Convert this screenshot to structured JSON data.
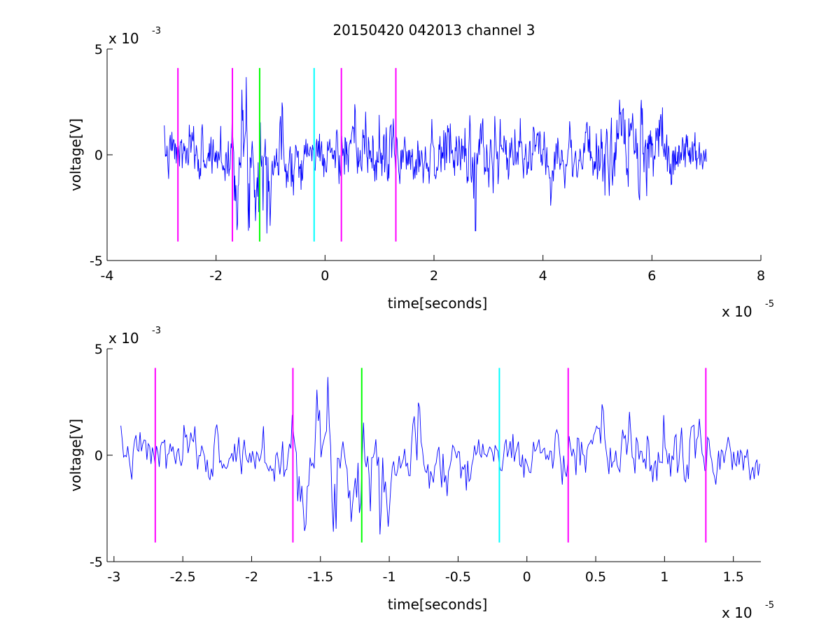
{
  "title": "20150420 042013 channel 3",
  "colors": {
    "signal": "#0000ff",
    "magenta": "#ff00ff",
    "green": "#00ff00",
    "cyan": "#00ffff",
    "axes": "#000000",
    "background": "#ffffff"
  },
  "chart_data": [
    {
      "type": "line",
      "name": "full-view",
      "xlabel": "time[seconds]",
      "ylabel": "voltage[V]",
      "x_multiplier": {
        "base": "x 10",
        "exp": "-5"
      },
      "y_multiplier": {
        "base": "x 10",
        "exp": "-3"
      },
      "xlim": [
        -4,
        8
      ],
      "ylim": [
        -5,
        5
      ],
      "xticks": [
        -4,
        -2,
        0,
        2,
        4,
        6,
        8
      ],
      "xtick_labels": [
        "-4",
        "-2",
        "0",
        "2",
        "4",
        "6",
        "8"
      ],
      "yticks": [
        -5,
        0,
        5
      ],
      "ytick_labels": [
        "-5",
        "0",
        "5"
      ],
      "signal": {
        "x_start": -2.95,
        "x_end": 7.0,
        "points": 1000,
        "seed": 7
      },
      "markers": [
        {
          "x": -2.7,
          "color": "magenta",
          "y_range": [
            -4.1,
            4.1
          ]
        },
        {
          "x": -1.7,
          "color": "magenta",
          "y_range": [
            -4.1,
            4.1
          ]
        },
        {
          "x": -1.2,
          "color": "green",
          "y_range": [
            -4.1,
            4.1
          ]
        },
        {
          "x": -0.2,
          "color": "cyan",
          "y_range": [
            -4.1,
            4.1
          ]
        },
        {
          "x": 0.3,
          "color": "magenta",
          "y_range": [
            -4.1,
            4.1
          ]
        },
        {
          "x": 1.3,
          "color": "magenta",
          "y_range": [
            -4.1,
            4.1
          ]
        }
      ]
    },
    {
      "type": "line",
      "name": "zoomed-view",
      "xlabel": "time[seconds]",
      "ylabel": "voltage[V]",
      "x_multiplier": {
        "base": "x 10",
        "exp": "-5"
      },
      "y_multiplier": {
        "base": "x 10",
        "exp": "-3"
      },
      "xlim": [
        -3.05,
        1.7
      ],
      "ylim": [
        -5,
        5
      ],
      "xticks": [
        -3,
        -2.5,
        -2,
        -1.5,
        -1,
        -0.5,
        0,
        0.5,
        1,
        1.5
      ],
      "xtick_labels": [
        "-3",
        "-2.5",
        "-2",
        "-1.5",
        "-1",
        "-0.5",
        "0",
        "0.5",
        "1",
        "1.5"
      ],
      "yticks": [
        -5,
        0,
        5
      ],
      "ytick_labels": [
        "-5",
        "0",
        "5"
      ],
      "signal": {
        "x_start": -2.95,
        "x_end": 1.7,
        "points": 470,
        "seed": 7
      },
      "markers": [
        {
          "x": -2.7,
          "color": "magenta",
          "y_range": [
            -4.1,
            4.1
          ]
        },
        {
          "x": -1.7,
          "color": "magenta",
          "y_range": [
            -4.1,
            4.1
          ]
        },
        {
          "x": -1.2,
          "color": "green",
          "y_range": [
            -4.1,
            4.1
          ]
        },
        {
          "x": -0.2,
          "color": "cyan",
          "y_range": [
            -4.1,
            4.1
          ]
        },
        {
          "x": 0.3,
          "color": "magenta",
          "y_range": [
            -4.1,
            4.1
          ]
        },
        {
          "x": 1.3,
          "color": "magenta",
          "y_range": [
            -4.1,
            4.1
          ]
        }
      ]
    }
  ]
}
